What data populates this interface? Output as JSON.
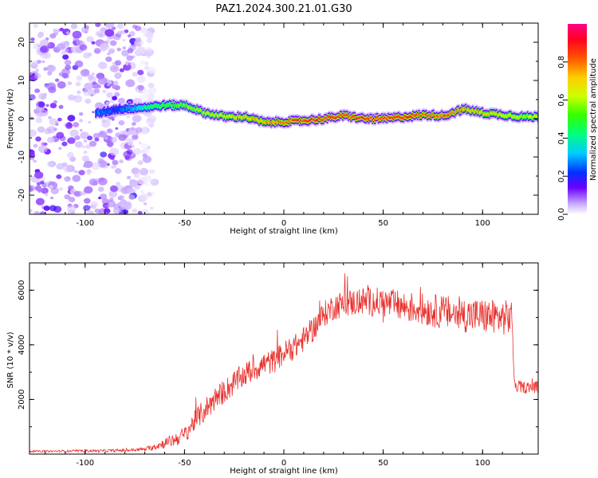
{
  "chart_data": [
    {
      "type": "heatmap",
      "title": "PAZ1.2024.300.21.01.G30",
      "xlabel": "Height of straight line (km)",
      "ylabel": "Frequency (Hz)",
      "xlim": [
        -128,
        128
      ],
      "ylim": [
        -25,
        25
      ],
      "xticks": [
        -100,
        -50,
        0,
        50,
        100
      ],
      "yticks": [
        20,
        10,
        0,
        -10,
        -20
      ],
      "colorbar": {
        "label": "Normalized spectral amplitude",
        "range": [
          0,
          1
        ],
        "ticks": [
          0.0,
          0.2,
          0.4,
          0.6,
          0.8
        ]
      },
      "ridge": {
        "description_points": [
          {
            "x": -93,
            "freq": 1.5,
            "amp": 0.25
          },
          {
            "x": -85,
            "freq": 2.5,
            "amp": 0.2
          },
          {
            "x": -70,
            "freq": 3,
            "amp": 0.4
          },
          {
            "x": -60,
            "freq": 3.5,
            "amp": 0.5
          },
          {
            "x": -50,
            "freq": 3.5,
            "amp": 0.55
          },
          {
            "x": -40,
            "freq": 1.5,
            "amp": 0.6
          },
          {
            "x": -30,
            "freq": 0.5,
            "amp": 0.65
          },
          {
            "x": -20,
            "freq": 0.5,
            "amp": 0.7
          },
          {
            "x": -10,
            "freq": -1,
            "amp": 0.75
          },
          {
            "x": 0,
            "freq": -0.8,
            "amp": 0.8
          },
          {
            "x": 10,
            "freq": -0.5,
            "amp": 0.85
          },
          {
            "x": 20,
            "freq": 0,
            "amp": 0.85
          },
          {
            "x": 30,
            "freq": 0.8,
            "amp": 0.85
          },
          {
            "x": 40,
            "freq": 0,
            "amp": 0.85
          },
          {
            "x": 50,
            "freq": 0,
            "amp": 0.85
          },
          {
            "x": 60,
            "freq": 0.5,
            "amp": 0.85
          },
          {
            "x": 70,
            "freq": 1,
            "amp": 0.8
          },
          {
            "x": 80,
            "freq": 0.8,
            "amp": 0.8
          },
          {
            "x": 90,
            "freq": 2.5,
            "amp": 0.75
          },
          {
            "x": 100,
            "freq": 1.5,
            "amp": 0.7
          },
          {
            "x": 110,
            "freq": 1,
            "amp": 0.65
          },
          {
            "x": 120,
            "freq": 0.5,
            "amp": 0.6
          },
          {
            "x": 128,
            "freq": 0.5,
            "amp": 0.6
          }
        ]
      },
      "noise_region": {
        "x_from": -128,
        "x_to": -65
      }
    },
    {
      "type": "line",
      "xlabel": "Height of straight line (km)",
      "ylabel": "SNR (10 * v/v)",
      "xlim": [
        -128,
        128
      ],
      "ylim": [
        0,
        7000
      ],
      "xticks": [
        -100,
        -50,
        0,
        50,
        100
      ],
      "yticks": [
        2000,
        4000,
        6000
      ],
      "color": "#e8302c",
      "series": [
        {
          "values": [
            {
              "x": -128,
              "y": 100
            },
            {
              "x": -110,
              "y": 110
            },
            {
              "x": -90,
              "y": 120
            },
            {
              "x": -75,
              "y": 150
            },
            {
              "x": -68,
              "y": 200
            },
            {
              "x": -62,
              "y": 350
            },
            {
              "x": -56,
              "y": 500
            },
            {
              "x": -50,
              "y": 700
            },
            {
              "x": -45,
              "y": 1200
            },
            {
              "x": -40,
              "y": 1600
            },
            {
              "x": -35,
              "y": 2000
            },
            {
              "x": -30,
              "y": 2300
            },
            {
              "x": -25,
              "y": 2600
            },
            {
              "x": -20,
              "y": 2900
            },
            {
              "x": -15,
              "y": 3100
            },
            {
              "x": -10,
              "y": 3300
            },
            {
              "x": -5,
              "y": 3400
            },
            {
              "x": 0,
              "y": 3700
            },
            {
              "x": 5,
              "y": 3900
            },
            {
              "x": 10,
              "y": 4200
            },
            {
              "x": 15,
              "y": 4600
            },
            {
              "x": 20,
              "y": 5100
            },
            {
              "x": 25,
              "y": 5400
            },
            {
              "x": 30,
              "y": 5500
            },
            {
              "x": 40,
              "y": 5600
            },
            {
              "x": 50,
              "y": 5550
            },
            {
              "x": 60,
              "y": 5400
            },
            {
              "x": 70,
              "y": 5300
            },
            {
              "x": 80,
              "y": 5200
            },
            {
              "x": 90,
              "y": 5100
            },
            {
              "x": 100,
              "y": 5050
            },
            {
              "x": 110,
              "y": 5000
            },
            {
              "x": 115,
              "y": 5000
            },
            {
              "x": 116,
              "y": 2500
            },
            {
              "x": 120,
              "y": 2450
            },
            {
              "x": 128,
              "y": 2450
            }
          ],
          "noise_amplitude": [
            {
              "x": -128,
              "a": 30
            },
            {
              "x": -70,
              "a": 60
            },
            {
              "x": -40,
              "a": 450
            },
            {
              "x": 0,
              "a": 450
            },
            {
              "x": 30,
              "a": 500
            },
            {
              "x": 90,
              "a": 650
            },
            {
              "x": 115,
              "a": 650
            },
            {
              "x": 116,
              "a": 220
            },
            {
              "x": 128,
              "a": 220
            }
          ]
        }
      ]
    }
  ]
}
